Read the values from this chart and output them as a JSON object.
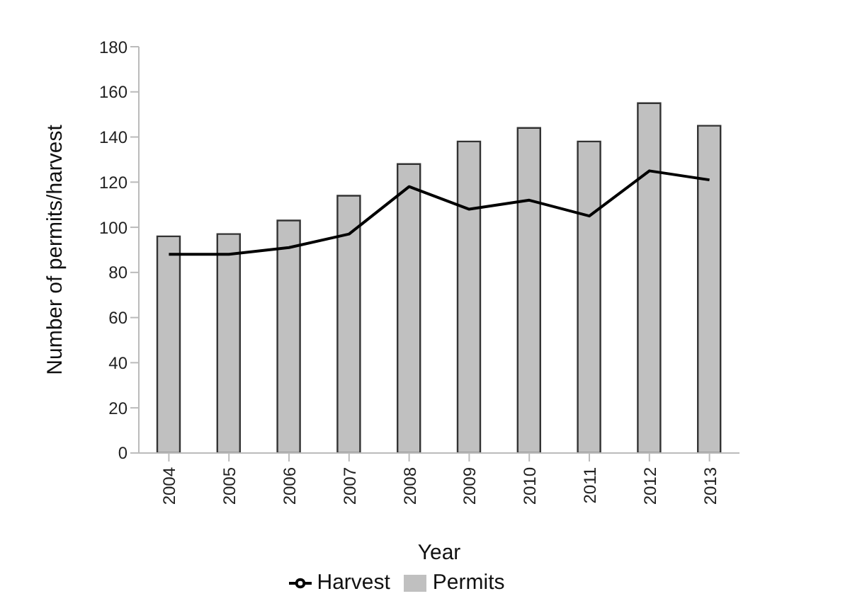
{
  "chart_data": {
    "type": "bar",
    "xlabel": "Year",
    "ylabel": "Number of permits/harvest",
    "categories": [
      "2004",
      "2005",
      "2006",
      "2007",
      "2008",
      "2009",
      "2010",
      "2011",
      "2012",
      "2013"
    ],
    "series": [
      {
        "name": "Permits",
        "color": "#c0c0c0",
        "values": [
          96,
          97,
          103,
          114,
          128,
          138,
          144,
          138,
          155,
          145
        ]
      },
      {
        "name": "Harvest",
        "type": "line",
        "color": "#000000",
        "values": [
          88,
          88,
          91,
          97,
          118,
          108,
          112,
          105,
          125,
          121
        ]
      }
    ],
    "ylim": [
      0,
      180
    ],
    "yticks": [
      0,
      20,
      40,
      60,
      80,
      100,
      120,
      140,
      160,
      180
    ],
    "grid": false,
    "legend": "bottom",
    "marker": "none",
    "line_style": "solid"
  }
}
